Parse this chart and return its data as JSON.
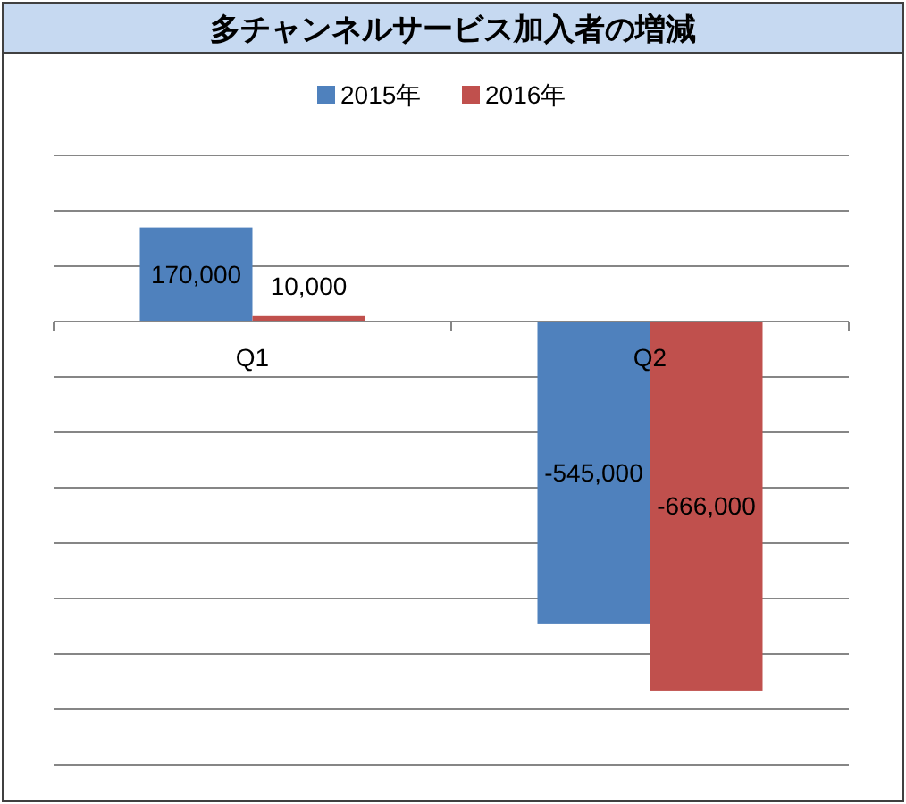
{
  "chart_data": {
    "type": "bar",
    "title": "多チャンネルサービス加入者の増減",
    "categories": [
      "Q1",
      "Q2"
    ],
    "series": [
      {
        "name": "2015年",
        "color": "#4f81bd",
        "values": [
          170000,
          -545000
        ],
        "value_labels": [
          "170,000",
          "-545,000"
        ]
      },
      {
        "name": "2016年",
        "color": "#c0504d",
        "values": [
          10000,
          -666000
        ],
        "value_labels": [
          "10,000",
          "-666,000"
        ]
      }
    ],
    "grid": "y",
    "legend": "top",
    "tick_labels": "x"
  }
}
